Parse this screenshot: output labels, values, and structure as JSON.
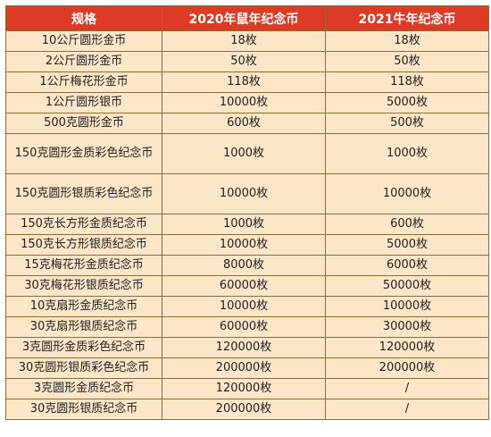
{
  "headers": [
    "规格",
    "2020年鼠年纪念币",
    "2021牛年纪念币"
  ],
  "rows": [
    [
      "10公斤圆形金币",
      "18枚",
      "18枚"
    ],
    [
      "2公斤圆形金币",
      "50枚",
      "50枚"
    ],
    [
      "1公斤梅花形金币",
      "118枚",
      "118枚"
    ],
    [
      "1公斤圆形银币",
      "10000枚",
      "5000枚"
    ],
    [
      "500克圆形金币",
      "600枚",
      "500枚"
    ],
    [
      "150克圆形金质彩色纪念币",
      "1000枚",
      "1000枚"
    ],
    [
      "150克圆形银质彩色纪念币",
      "10000枚",
      "10000枚"
    ],
    [
      "150克长方形金质纪念币",
      "1000枚",
      "600枚"
    ],
    [
      "150克长方形银质纪念币",
      "10000枚",
      "5000枚"
    ],
    [
      "15克梅花形金质纪念币",
      "8000枚",
      "6000枚"
    ],
    [
      "30克梅花形银质纪念币",
      "60000枚",
      "50000枚"
    ],
    [
      "10克扇形金质纪念币",
      "10000枚",
      "10000枚"
    ],
    [
      "30克扇形银质纪念币",
      "60000枚",
      "30000枚"
    ],
    [
      "3克圆形金质彩色纪念币",
      "120000枚",
      "120000枚"
    ],
    [
      "30克圆形银质彩色纪念币",
      "200000枚",
      "200000枚"
    ],
    [
      "3克圆形金质纪念币",
      "120000枚",
      "/"
    ],
    [
      "30克圆形银质纪念币",
      "200000枚",
      "/"
    ]
  ],
  "colors": {
    "header_bg": "#dd3b25",
    "row_bg": "#fce6c8",
    "border": "#8a6d3b"
  }
}
